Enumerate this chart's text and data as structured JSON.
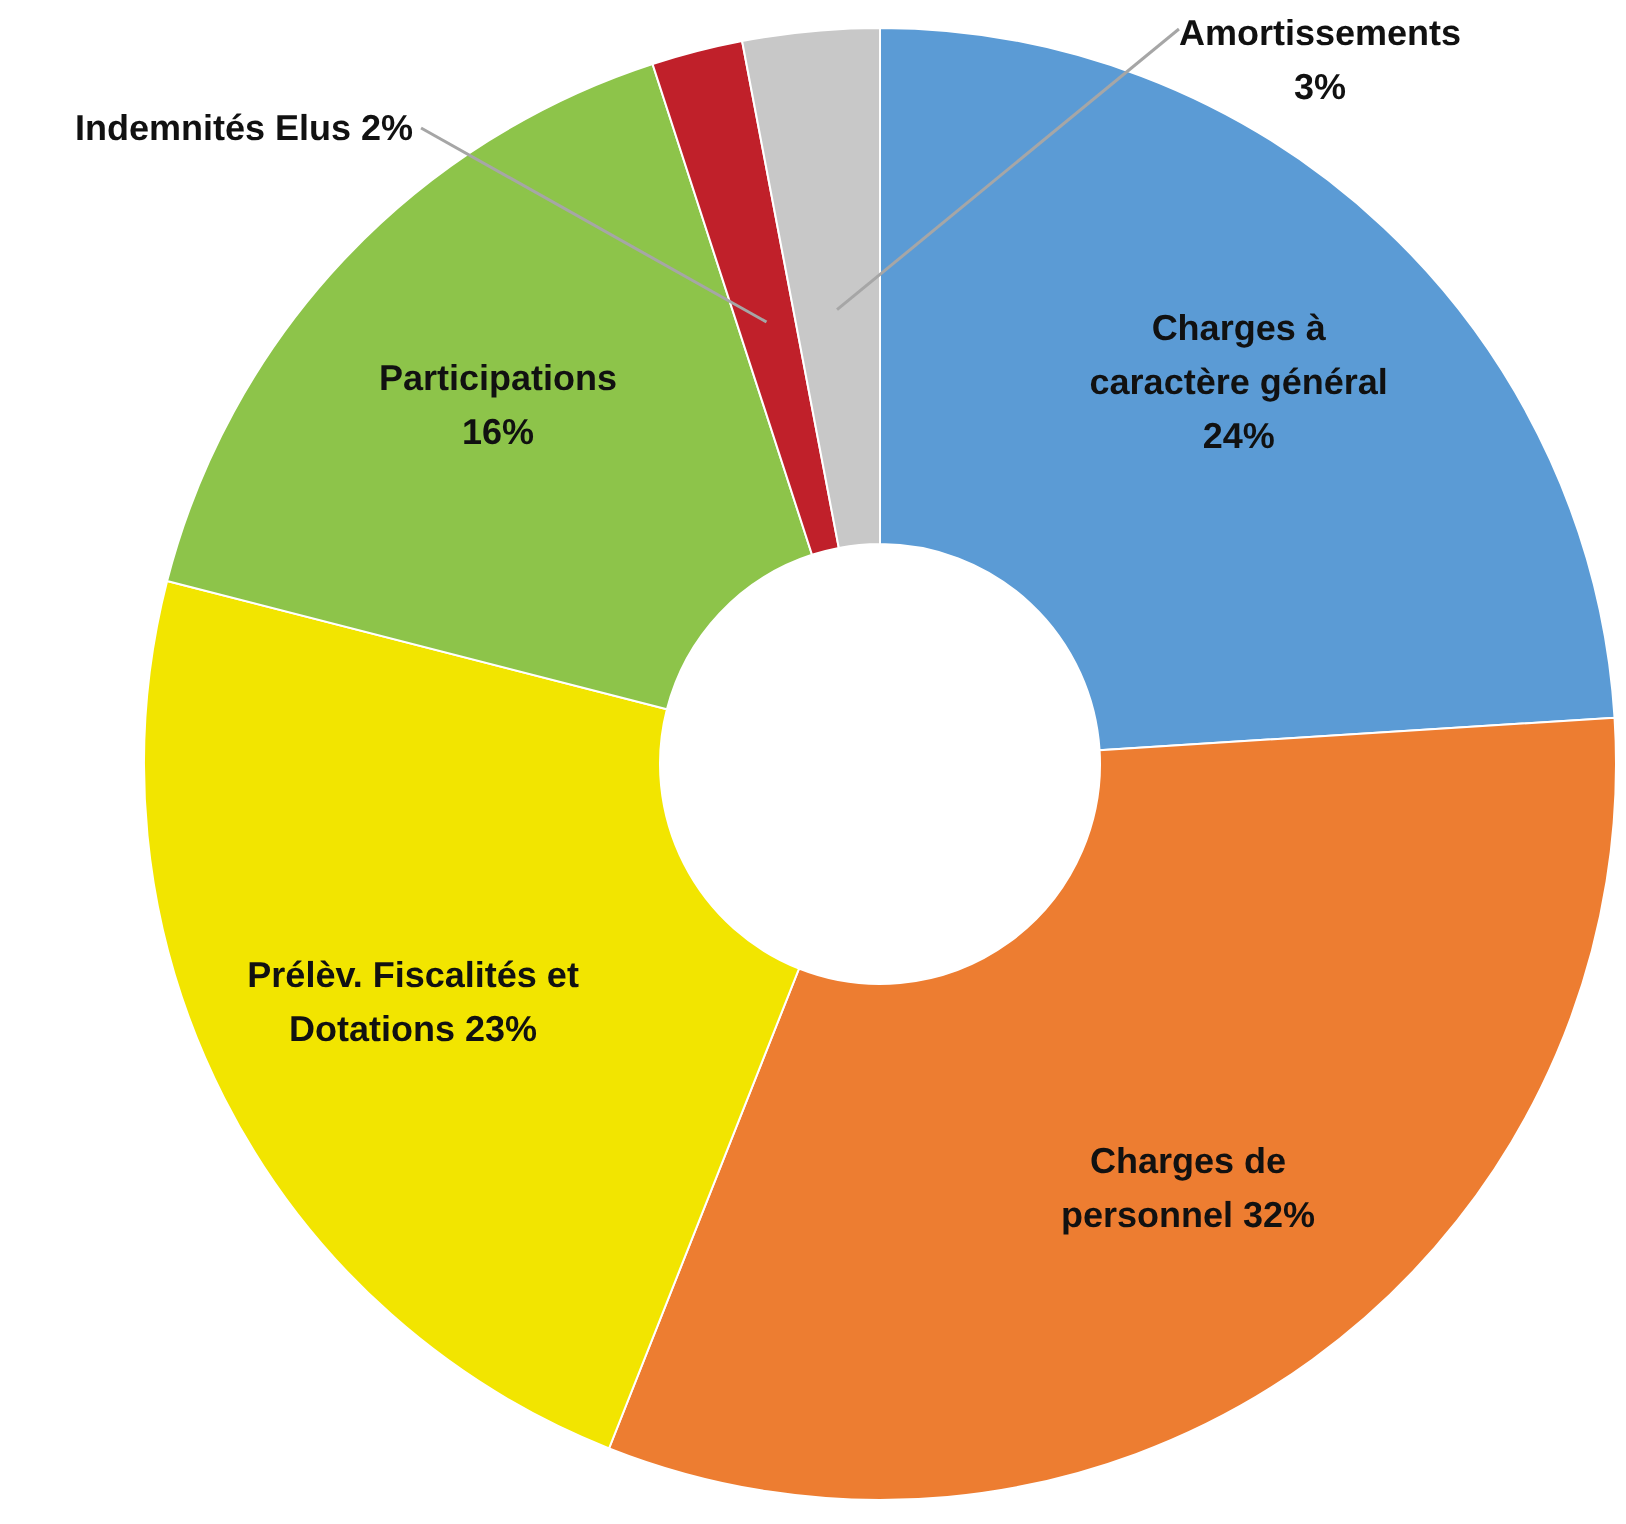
{
  "chart_data": {
    "type": "donut",
    "categories": [
      "Charges à caractère général",
      "Charges de personnel",
      "Prélèv. Fiscalités et Dotations",
      "Participations",
      "Indemnités Elus",
      "Amortissements"
    ],
    "values": [
      24,
      32,
      23,
      16,
      2,
      3
    ],
    "colors": [
      "#5b9bd5",
      "#ed7d31",
      "#f2e500",
      "#8dc44a",
      "#c0202a",
      "#c8c8c8"
    ],
    "value_labels": [
      "24%",
      "32%",
      "23%",
      "16%",
      "2%",
      "3%"
    ]
  }
}
